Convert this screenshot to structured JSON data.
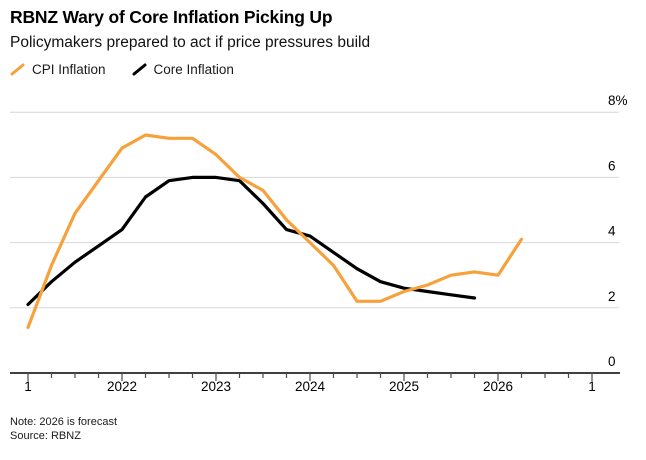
{
  "header": {
    "title": "RBNZ Wary of Core Inflation Picking Up",
    "subtitle": "Policymakers prepared to act if price pressures build"
  },
  "legend": [
    {
      "label": "CPI Inflation",
      "color": "#F7A13C"
    },
    {
      "label": "Core Inflation",
      "color": "#000000"
    }
  ],
  "footer": {
    "note": "Note: 2026 is forecast",
    "source": "Source: RBNZ"
  },
  "chart_data": {
    "type": "line",
    "title": "RBNZ Wary of Core Inflation Picking Up",
    "subtitle": "Policymakers prepared to act if price pressures build",
    "x_unit": "quarter",
    "x_start": "2021 Q1",
    "x_end": "2027 Q1",
    "ylim": [
      0,
      8
    ],
    "grid": "horizontal",
    "legend_position": "top-left",
    "y_axis_side": "right",
    "y_ticks": [
      {
        "label": "8%",
        "value": 8
      },
      {
        "label": "6",
        "value": 6
      },
      {
        "label": "4",
        "value": 4
      },
      {
        "label": "2",
        "value": 2
      },
      {
        "label": "0",
        "value": 0
      }
    ],
    "x_ticks": [
      {
        "label": "1",
        "quarter_index": 0
      },
      {
        "label": "2022",
        "quarter_index": 4
      },
      {
        "label": "2023",
        "quarter_index": 8
      },
      {
        "label": "2024",
        "quarter_index": 12
      },
      {
        "label": "2025",
        "quarter_index": 16
      },
      {
        "label": "2026",
        "quarter_index": 20
      },
      {
        "label": "1",
        "quarter_index": 24
      }
    ],
    "minor_tick_every_quarter": true,
    "series": [
      {
        "name": "Core Inflation",
        "color": "#000000",
        "start_quarter_index": 0,
        "quarters": [
          "2021Q1",
          "2021Q2",
          "2021Q3",
          "2021Q4",
          "2022Q1",
          "2022Q2",
          "2022Q3",
          "2022Q4",
          "2023Q1",
          "2023Q2",
          "2023Q3",
          "2023Q4",
          "2024Q1",
          "2024Q2",
          "2024Q3",
          "2024Q4",
          "2025Q1",
          "2025Q2",
          "2025Q3",
          "2025Q4"
        ],
        "values": [
          2.1,
          2.8,
          3.4,
          3.9,
          4.4,
          5.4,
          5.9,
          6.0,
          6.0,
          5.9,
          5.2,
          4.4,
          4.2,
          3.7,
          3.2,
          2.8,
          2.6,
          2.5,
          2.4,
          2.3
        ]
      },
      {
        "name": "CPI Inflation",
        "color": "#F7A13C",
        "start_quarter_index": 0,
        "quarters": [
          "2021Q1",
          "2021Q2",
          "2021Q3",
          "2021Q4",
          "2022Q1",
          "2022Q2",
          "2022Q3",
          "2022Q4",
          "2023Q1",
          "2023Q2",
          "2023Q3",
          "2023Q4",
          "2024Q1",
          "2024Q2",
          "2024Q3",
          "2024Q4",
          "2025Q1",
          "2025Q2",
          "2025Q3",
          "2025Q4",
          "2026Q1",
          "2026Q2"
        ],
        "values": [
          1.4,
          3.3,
          4.9,
          5.9,
          6.9,
          7.3,
          7.2,
          7.2,
          6.7,
          6.0,
          5.6,
          4.7,
          4.0,
          3.3,
          2.2,
          2.2,
          2.5,
          2.7,
          3.0,
          3.1,
          3.0,
          4.1
        ]
      }
    ],
    "note": "Note: 2026 is forecast",
    "source": "Source: RBNZ"
  }
}
